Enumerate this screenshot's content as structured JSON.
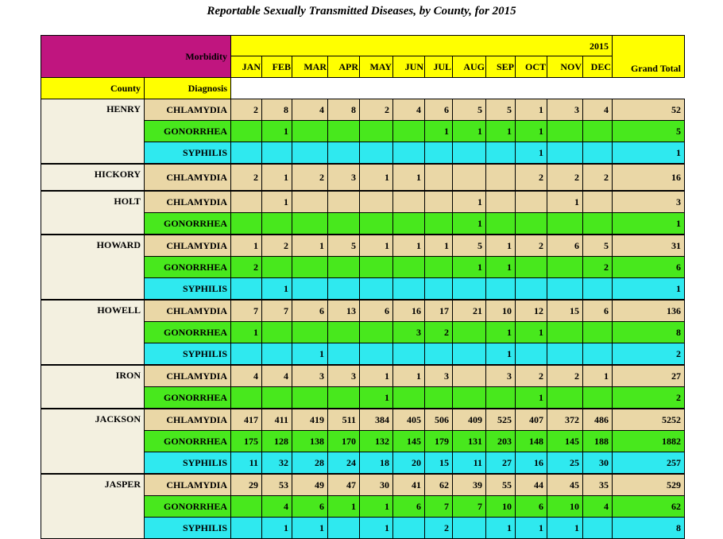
{
  "title": "Reportable Sexually Transmitted Diseases, by County, for 2015",
  "header": {
    "morbidity": "Morbidity",
    "year": "2015",
    "county": "County",
    "diagnosis": "Diagnosis",
    "grand_total": "Grand Total",
    "months": [
      "JAN",
      "FEB",
      "MAR",
      "APR",
      "MAY",
      "JUN",
      "JUL",
      "AUG",
      "SEP",
      "OCT",
      "NOV",
      "DEC"
    ]
  },
  "colors": {
    "chlamydia": "#ead7a6",
    "gonorrhea": "#48e81d",
    "syphilis": "#2fe9ef",
    "header": "#ffff00",
    "morbidity": "#c0157f"
  },
  "counties": [
    {
      "name": "HENRY",
      "rows": [
        {
          "diagnosis": "CHLAMYDIA",
          "values": [
            "2",
            "8",
            "4",
            "8",
            "2",
            "4",
            "6",
            "5",
            "5",
            "1",
            "3",
            "4"
          ],
          "total": "52"
        },
        {
          "diagnosis": "GONORRHEA",
          "values": [
            "",
            "1",
            "",
            "",
            "",
            "",
            "1",
            "1",
            "1",
            "1",
            "",
            ""
          ],
          "total": "5"
        },
        {
          "diagnosis": "SYPHILIS",
          "values": [
            "",
            "",
            "",
            "",
            "",
            "",
            "",
            "",
            "",
            "1",
            "",
            ""
          ],
          "total": "1"
        }
      ]
    },
    {
      "name": "HICKORY",
      "rows": [
        {
          "diagnosis": "CHLAMYDIA",
          "values": [
            "2",
            "1",
            "2",
            "3",
            "1",
            "1",
            "",
            "",
            "",
            "2",
            "2",
            "2"
          ],
          "total": "16"
        }
      ]
    },
    {
      "name": "HOLT",
      "rows": [
        {
          "diagnosis": "CHLAMYDIA",
          "values": [
            "",
            "1",
            "",
            "",
            "",
            "",
            "",
            "1",
            "",
            "",
            "1",
            ""
          ],
          "total": "3"
        },
        {
          "diagnosis": "GONORRHEA",
          "values": [
            "",
            "",
            "",
            "",
            "",
            "",
            "",
            "1",
            "",
            "",
            "",
            ""
          ],
          "total": "1"
        }
      ]
    },
    {
      "name": "HOWARD",
      "rows": [
        {
          "diagnosis": "CHLAMYDIA",
          "values": [
            "1",
            "2",
            "1",
            "5",
            "1",
            "1",
            "1",
            "5",
            "1",
            "2",
            "6",
            "5"
          ],
          "total": "31"
        },
        {
          "diagnosis": "GONORRHEA",
          "values": [
            "2",
            "",
            "",
            "",
            "",
            "",
            "",
            "1",
            "1",
            "",
            "",
            "2"
          ],
          "total": "6"
        },
        {
          "diagnosis": "SYPHILIS",
          "values": [
            "",
            "1",
            "",
            "",
            "",
            "",
            "",
            "",
            "",
            "",
            "",
            ""
          ],
          "total": "1"
        }
      ]
    },
    {
      "name": "HOWELL",
      "rows": [
        {
          "diagnosis": "CHLAMYDIA",
          "values": [
            "7",
            "7",
            "6",
            "13",
            "6",
            "16",
            "17",
            "21",
            "10",
            "12",
            "15",
            "6"
          ],
          "total": "136"
        },
        {
          "diagnosis": "GONORRHEA",
          "values": [
            "1",
            "",
            "",
            "",
            "",
            "3",
            "2",
            "",
            "1",
            "1",
            "",
            ""
          ],
          "total": "8"
        },
        {
          "diagnosis": "SYPHILIS",
          "values": [
            "",
            "",
            "1",
            "",
            "",
            "",
            "",
            "",
            "1",
            "",
            "",
            ""
          ],
          "total": "2"
        }
      ]
    },
    {
      "name": "IRON",
      "rows": [
        {
          "diagnosis": "CHLAMYDIA",
          "values": [
            "4",
            "4",
            "3",
            "3",
            "1",
            "1",
            "3",
            "",
            "3",
            "2",
            "2",
            "1"
          ],
          "total": "27"
        },
        {
          "diagnosis": "GONORRHEA",
          "values": [
            "",
            "",
            "",
            "",
            "1",
            "",
            "",
            "",
            "",
            "1",
            "",
            ""
          ],
          "total": "2"
        }
      ]
    },
    {
      "name": "JACKSON",
      "rows": [
        {
          "diagnosis": "CHLAMYDIA",
          "values": [
            "417",
            "411",
            "419",
            "511",
            "384",
            "405",
            "506",
            "409",
            "525",
            "407",
            "372",
            "486"
          ],
          "total": "5252"
        },
        {
          "diagnosis": "GONORRHEA",
          "values": [
            "175",
            "128",
            "138",
            "170",
            "132",
            "145",
            "179",
            "131",
            "203",
            "148",
            "145",
            "188"
          ],
          "total": "1882"
        },
        {
          "diagnosis": "SYPHILIS",
          "values": [
            "11",
            "32",
            "28",
            "24",
            "18",
            "20",
            "15",
            "11",
            "27",
            "16",
            "25",
            "30"
          ],
          "total": "257"
        }
      ]
    },
    {
      "name": "JASPER",
      "rows": [
        {
          "diagnosis": "CHLAMYDIA",
          "values": [
            "29",
            "53",
            "49",
            "47",
            "30",
            "41",
            "62",
            "39",
            "55",
            "44",
            "45",
            "35"
          ],
          "total": "529"
        },
        {
          "diagnosis": "GONORRHEA",
          "values": [
            "",
            "4",
            "6",
            "1",
            "1",
            "6",
            "7",
            "7",
            "10",
            "6",
            "10",
            "4"
          ],
          "total": "62"
        },
        {
          "diagnosis": "SYPHILIS",
          "values": [
            "",
            "1",
            "1",
            "",
            "1",
            "",
            "2",
            "",
            "1",
            "1",
            "1",
            ""
          ],
          "total": "8"
        }
      ]
    }
  ]
}
